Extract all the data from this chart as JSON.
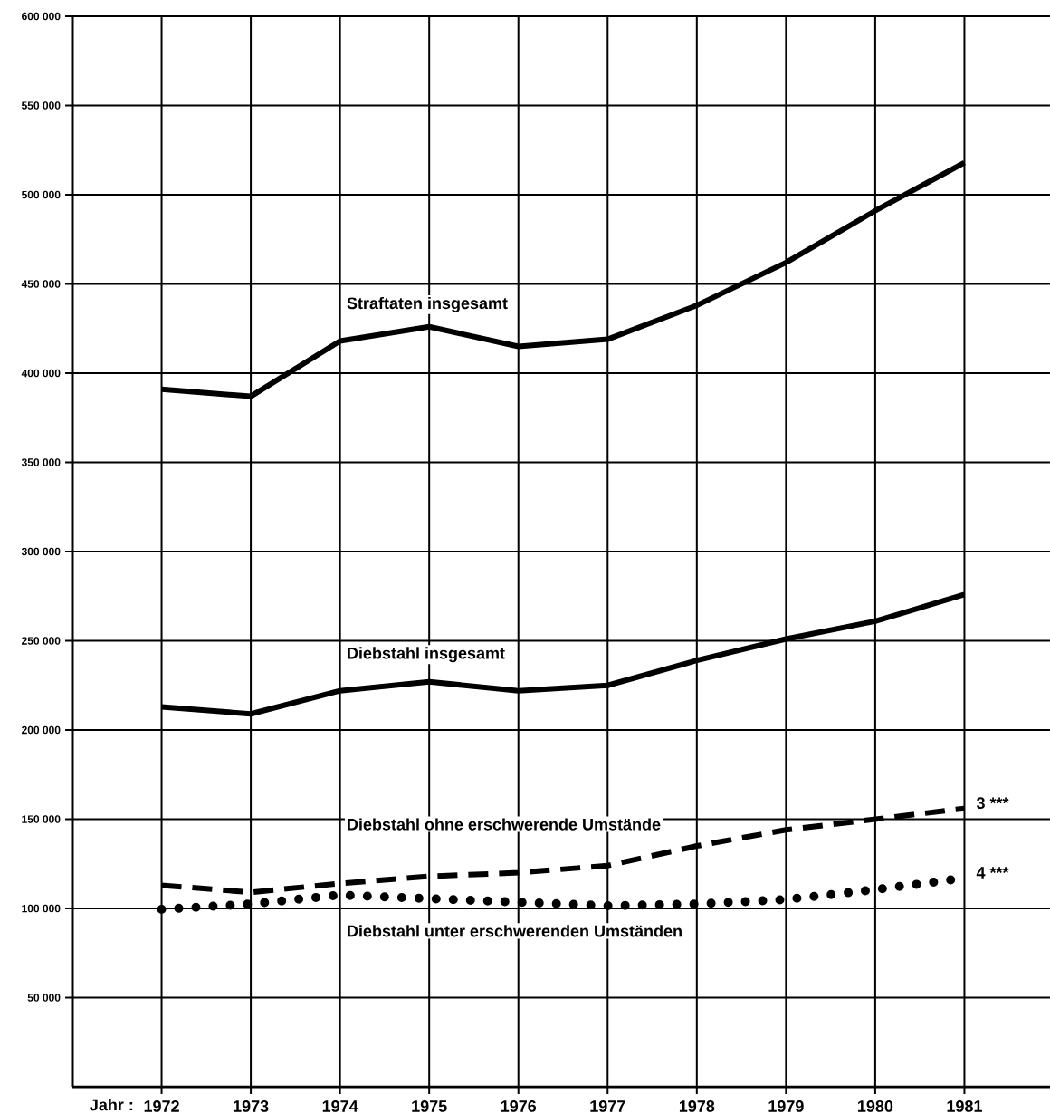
{
  "chart_data": {
    "type": "line",
    "xlabel": "Jahr :",
    "x": [
      1972,
      1973,
      1974,
      1975,
      1976,
      1977,
      1978,
      1979,
      1980,
      1981
    ],
    "xlim": [
      1971,
      1982
    ],
    "xticks": [
      1972,
      1973,
      1974,
      1975,
      1976,
      1977,
      1978,
      1979,
      1980,
      1981
    ],
    "ylim": [
      0,
      600000
    ],
    "yticks": [
      {
        "value": 50000,
        "label": "50 000"
      },
      {
        "value": 100000,
        "label": "100 000"
      },
      {
        "value": 150000,
        "label": "150 000"
      },
      {
        "value": 200000,
        "label": "200 000"
      },
      {
        "value": 250000,
        "label": "250 000"
      },
      {
        "value": 300000,
        "label": "300 000"
      },
      {
        "value": 350000,
        "label": "350 000"
      },
      {
        "value": 400000,
        "label": "400 000"
      },
      {
        "value": 450000,
        "label": "450 000"
      },
      {
        "value": 500000,
        "label": "500 000"
      },
      {
        "value": 550000,
        "label": "550 000"
      },
      {
        "value": 600000,
        "label": "600 000"
      }
    ],
    "grid": true,
    "series": [
      {
        "name": "Straftaten insgesamt",
        "color": "#000000",
        "line_style": "solid",
        "values": [
          391000,
          387000,
          418000,
          426000,
          415000,
          419000,
          438000,
          462000,
          491000,
          518000
        ]
      },
      {
        "name": "Diebstahl insgesamt",
        "color": "#000000",
        "line_style": "solid",
        "values": [
          213000,
          209000,
          222000,
          227000,
          222000,
          225000,
          239000,
          251000,
          261000,
          276000
        ]
      },
      {
        "name": "Diebstahl ohne erschwerende Umstände",
        "color": "#000000",
        "line_style": "dashed",
        "values": [
          113000,
          109000,
          114000,
          118000,
          120000,
          124000,
          135000,
          144000,
          150000,
          156000
        ]
      },
      {
        "name": "Diebstahl unter erschwerenden Umständen",
        "color": "#000000",
        "line_style": "dotted",
        "values": [
          99500,
          102500,
          107500,
          105500,
          103500,
          101500,
          102500,
          105000,
          110500,
          117000
        ]
      }
    ],
    "annotations": [
      {
        "text": "3 ***",
        "x": 1981,
        "y": 156000
      },
      {
        "text": "4 ***",
        "x": 1981,
        "y": 117000
      }
    ]
  }
}
